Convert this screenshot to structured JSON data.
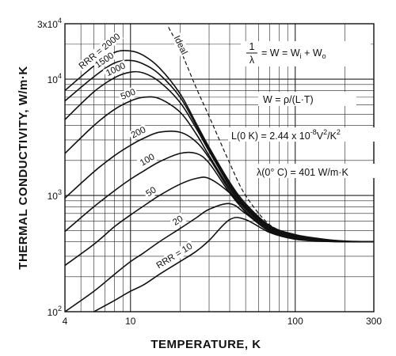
{
  "chart_data": {
    "type": "line",
    "xlabel": "TEMPERATURE, K",
    "ylabel": "THERMAL CONDUCTIVITY, W/m·K",
    "x_scale": "log",
    "y_scale": "log",
    "xlim": [
      4,
      300
    ],
    "ylim": [
      100,
      30000
    ],
    "grid": true,
    "x_ticks": [
      {
        "value": 4,
        "label": "4"
      },
      {
        "value": 10,
        "label": "10"
      },
      {
        "value": 100,
        "label": "100"
      },
      {
        "value": 300,
        "label": "300"
      }
    ],
    "y_ticks": [
      {
        "value": 100,
        "base": "10",
        "exp": "2"
      },
      {
        "value": 1000,
        "base": "10",
        "exp": "3"
      },
      {
        "value": 10000,
        "base": "10",
        "exp": "4"
      },
      {
        "value": 30000,
        "base": "3x10",
        "exp": "4"
      }
    ],
    "series": [
      {
        "name": "RRR = 2000",
        "label": "RRR = 2000",
        "x": [
          4,
          6,
          8,
          10,
          12,
          15,
          20,
          25,
          30,
          40,
          50,
          70,
          100,
          150,
          200,
          300
        ],
        "y": [
          8000,
          13000,
          17000,
          17500,
          16000,
          12500,
          7500,
          4200,
          2600,
          1300,
          850,
          550,
          460,
          420,
          405,
          400
        ]
      },
      {
        "name": "1500",
        "label": "1500",
        "x": [
          4,
          6,
          8,
          10,
          12,
          15,
          20,
          25,
          30,
          40,
          50,
          70,
          100,
          150,
          200,
          300
        ],
        "y": [
          6500,
          10500,
          13800,
          14500,
          13500,
          11000,
          7000,
          4000,
          2500,
          1250,
          820,
          540,
          455,
          418,
          403,
          400
        ]
      },
      {
        "name": "1000",
        "label": "1000",
        "x": [
          4,
          6,
          8,
          10,
          12,
          15,
          20,
          25,
          30,
          40,
          50,
          70,
          100,
          150,
          200,
          300
        ],
        "y": [
          4500,
          7800,
          10300,
          11500,
          11300,
          9500,
          6300,
          3800,
          2400,
          1200,
          800,
          530,
          450,
          415,
          402,
          400
        ]
      },
      {
        "name": "500",
        "label": "500",
        "x": [
          4,
          6,
          8,
          10,
          12,
          15,
          20,
          25,
          30,
          40,
          50,
          70,
          100,
          150,
          200,
          300
        ],
        "y": [
          2300,
          4000,
          5500,
          6500,
          7000,
          6800,
          5200,
          3400,
          2200,
          1150,
          780,
          520,
          445,
          413,
          401,
          400
        ]
      },
      {
        "name": "200",
        "label": "200",
        "x": [
          4,
          6,
          8,
          10,
          12,
          15,
          20,
          25,
          30,
          40,
          50,
          70,
          100,
          150,
          200,
          300
        ],
        "y": [
          950,
          1600,
          2200,
          2700,
          3100,
          3500,
          3500,
          2900,
          2100,
          1100,
          760,
          510,
          440,
          410,
          400,
          400
        ]
      },
      {
        "name": "100",
        "label": "100",
        "x": [
          4,
          6,
          8,
          10,
          12,
          15,
          20,
          25,
          30,
          40,
          50,
          70,
          100,
          150,
          200,
          300
        ],
        "y": [
          490,
          800,
          1100,
          1380,
          1620,
          1950,
          2300,
          2300,
          1900,
          1050,
          730,
          500,
          435,
          408,
          400,
          400
        ]
      },
      {
        "name": "50",
        "label": "50",
        "x": [
          4,
          6,
          8,
          10,
          12,
          15,
          20,
          25,
          30,
          40,
          50,
          70,
          100,
          150,
          200,
          300
        ],
        "y": [
          250,
          380,
          540,
          680,
          810,
          1000,
          1250,
          1400,
          1400,
          1050,
          720,
          495,
          430,
          406,
          400,
          400
        ]
      },
      {
        "name": "20",
        "label": "20",
        "x": [
          4,
          6,
          8,
          10,
          12,
          15,
          20,
          25,
          30,
          40,
          50,
          70,
          100,
          150,
          200,
          300
        ],
        "y": [
          100,
          150,
          210,
          270,
          320,
          400,
          520,
          640,
          760,
          850,
          700,
          490,
          425,
          404,
          400,
          400
        ]
      },
      {
        "name": "RRR = 10",
        "label": "RRR = 10",
        "x": [
          6,
          8,
          10,
          12,
          15,
          20,
          25,
          30,
          40,
          50,
          70,
          100,
          150,
          200,
          300
        ],
        "y": [
          100,
          125,
          150,
          170,
          210,
          270,
          330,
          410,
          620,
          620,
          480,
          420,
          403,
          400,
          400
        ]
      },
      {
        "name": "Ideal",
        "label": "Ideal",
        "dashed": true,
        "x": [
          17,
          20,
          25,
          30,
          40,
          50,
          70,
          100
        ],
        "y": [
          28000,
          18000,
          8500,
          4800,
          1900,
          1000,
          560,
          450
        ]
      }
    ],
    "annotations": [
      {
        "id": "formula1",
        "num": "1",
        "den": "λ",
        "rest": "= W = W",
        "sub1": "i",
        "mid": " + W",
        "sub2": "o"
      },
      {
        "id": "formula2",
        "text": "W = ρ/(L·T)"
      },
      {
        "id": "formula3",
        "pre": "L(0 K) = 2.44 x 10",
        "exp1": "-8",
        "mid": "V",
        "exp2": "2",
        "post": "/K",
        "exp3": "2"
      },
      {
        "id": "formula4",
        "text": "λ(0° C) = 401 W/m·K"
      }
    ]
  }
}
